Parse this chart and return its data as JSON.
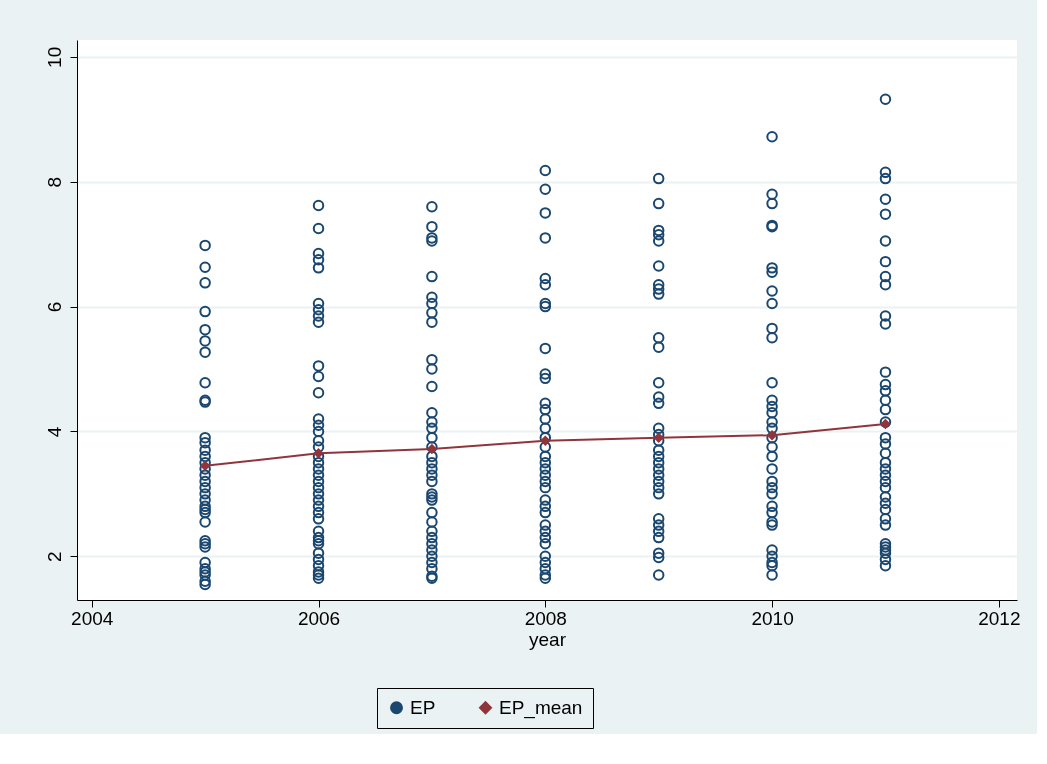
{
  "chart_data": {
    "type": "scatter",
    "xlabel": "year",
    "xlim": [
      2003.87,
      2012.16
    ],
    "ylim": [
      1.3,
      10.27
    ],
    "xticks": [
      2004,
      2006,
      2008,
      2010,
      2012
    ],
    "yticks": [
      2,
      4,
      6,
      8,
      10
    ],
    "grid": "y",
    "legend": "bottom",
    "series": [
      {
        "name": "EP",
        "marker": "circle",
        "color": "#1a476f",
        "x": [
          2005,
          2005,
          2005,
          2005,
          2005,
          2005,
          2005,
          2005,
          2005,
          2005,
          2005,
          2005,
          2005,
          2005,
          2005,
          2005,
          2005,
          2005,
          2005,
          2005,
          2005,
          2005,
          2005,
          2005,
          2005,
          2005,
          2005,
          2005,
          2005,
          2005,
          2005,
          2005,
          2005,
          2005,
          2006,
          2006,
          2006,
          2006,
          2006,
          2006,
          2006,
          2006,
          2006,
          2006,
          2006,
          2006,
          2006,
          2006,
          2006,
          2006,
          2006,
          2006,
          2006,
          2006,
          2006,
          2006,
          2006,
          2006,
          2006,
          2006,
          2006,
          2006,
          2006,
          2006,
          2006,
          2006,
          2006,
          2006,
          2006,
          2006,
          2006,
          2006,
          2007,
          2007,
          2007,
          2007,
          2007,
          2007,
          2007,
          2007,
          2007,
          2007,
          2007,
          2007,
          2007,
          2007,
          2007,
          2007,
          2007,
          2007,
          2007,
          2007,
          2007,
          2007,
          2007,
          2007,
          2007,
          2007,
          2007,
          2007,
          2007,
          2007,
          2007,
          2007,
          2007,
          2007,
          2007,
          2007,
          2008,
          2008,
          2008,
          2008,
          2008,
          2008,
          2008,
          2008,
          2008,
          2008,
          2008,
          2008,
          2008,
          2008,
          2008,
          2008,
          2008,
          2008,
          2008,
          2008,
          2008,
          2008,
          2008,
          2008,
          2008,
          2008,
          2008,
          2008,
          2008,
          2008,
          2008,
          2008,
          2008,
          2008,
          2008,
          2009,
          2009,
          2009,
          2009,
          2009,
          2009,
          2009,
          2009,
          2009,
          2009,
          2009,
          2009,
          2009,
          2009,
          2009,
          2009,
          2009,
          2009,
          2009,
          2009,
          2009,
          2009,
          2009,
          2009,
          2009,
          2009,
          2009,
          2009,
          2009,
          2009,
          2009,
          2009,
          2010,
          2010,
          2010,
          2010,
          2010,
          2010,
          2010,
          2010,
          2010,
          2010,
          2010,
          2010,
          2010,
          2010,
          2010,
          2010,
          2010,
          2010,
          2010,
          2010,
          2010,
          2010,
          2010,
          2010,
          2010,
          2010,
          2010,
          2010,
          2010,
          2010,
          2010,
          2010,
          2010,
          2011,
          2011,
          2011,
          2011,
          2011,
          2011,
          2011,
          2011,
          2011,
          2011,
          2011,
          2011,
          2011,
          2011,
          2011,
          2011,
          2011,
          2011,
          2011,
          2011,
          2011,
          2011,
          2011,
          2011,
          2011,
          2011,
          2011,
          2011,
          2011,
          2011,
          2011,
          2011,
          2011,
          2011,
          2011,
          2011
        ],
        "values": [
          6.98,
          6.63,
          6.38,
          5.92,
          5.63,
          5.45,
          5.27,
          4.78,
          4.5,
          4.47,
          3.9,
          3.82,
          3.7,
          3.6,
          3.5,
          3.4,
          3.3,
          3.2,
          3.1,
          3.0,
          2.9,
          2.8,
          2.75,
          2.7,
          2.55,
          2.25,
          2.2,
          2.15,
          1.9,
          1.8,
          1.75,
          1.7,
          1.6,
          1.55,
          7.62,
          7.25,
          6.85,
          6.75,
          6.62,
          6.05,
          5.95,
          5.85,
          5.75,
          5.05,
          4.88,
          4.62,
          4.2,
          4.1,
          4.0,
          3.85,
          3.75,
          3.6,
          3.5,
          3.4,
          3.3,
          3.2,
          3.1,
          3.0,
          2.9,
          2.8,
          2.7,
          2.6,
          2.4,
          2.3,
          2.25,
          2.2,
          2.05,
          1.95,
          1.85,
          1.75,
          1.7,
          1.65,
          7.6,
          7.28,
          7.1,
          7.05,
          6.48,
          6.15,
          6.05,
          5.9,
          5.75,
          5.15,
          5.0,
          4.72,
          4.3,
          4.15,
          4.05,
          3.9,
          3.75,
          3.6,
          3.5,
          3.4,
          3.3,
          3.2,
          3.0,
          2.95,
          2.9,
          2.7,
          2.55,
          2.4,
          2.3,
          2.2,
          2.1,
          2.0,
          1.9,
          1.8,
          1.68,
          1.65,
          8.18,
          7.88,
          7.5,
          7.1,
          6.45,
          6.35,
          6.05,
          6.0,
          5.33,
          4.92,
          4.85,
          4.45,
          4.35,
          4.2,
          4.05,
          3.9,
          3.75,
          3.6,
          3.5,
          3.4,
          3.3,
          3.2,
          3.1,
          2.9,
          2.8,
          2.7,
          2.5,
          2.4,
          2.3,
          2.2,
          2.0,
          1.9,
          1.8,
          1.7,
          1.65,
          8.05,
          7.65,
          7.22,
          7.15,
          7.05,
          6.65,
          6.35,
          6.28,
          6.2,
          5.5,
          5.35,
          4.78,
          4.55,
          4.45,
          4.05,
          3.95,
          3.85,
          3.7,
          3.6,
          3.5,
          3.4,
          3.3,
          3.2,
          3.1,
          3.0,
          2.6,
          2.5,
          2.4,
          2.3,
          2.05,
          1.98,
          1.7,
          8.72,
          7.8,
          7.65,
          7.3,
          7.28,
          6.62,
          6.55,
          6.25,
          6.05,
          5.65,
          5.5,
          4.78,
          4.5,
          4.4,
          4.3,
          4.15,
          4.05,
          3.9,
          3.75,
          3.6,
          3.4,
          3.2,
          3.1,
          3.0,
          2.8,
          2.7,
          2.55,
          2.5,
          2.1,
          2.0,
          1.9,
          1.85,
          1.7,
          9.32,
          8.15,
          8.05,
          7.72,
          7.48,
          7.05,
          6.72,
          6.48,
          6.35,
          5.85,
          5.72,
          4.95,
          4.75,
          4.65,
          4.5,
          4.35,
          4.15,
          3.9,
          3.8,
          3.65,
          3.5,
          3.4,
          3.3,
          3.2,
          3.1,
          2.95,
          2.85,
          2.75,
          2.6,
          2.5,
          2.2,
          2.15,
          2.1,
          2.05,
          1.95,
          1.85
        ]
      },
      {
        "name": "EP_mean",
        "type": "line",
        "marker": "diamond",
        "line_style": "solid",
        "color": "#90353b",
        "x": [
          2005,
          2006,
          2007,
          2008,
          2009,
          2010,
          2011
        ],
        "values": [
          3.45,
          3.65,
          3.72,
          3.85,
          3.9,
          3.94,
          4.12
        ]
      }
    ]
  }
}
